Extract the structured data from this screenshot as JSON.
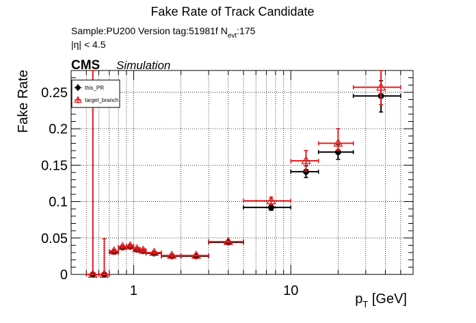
{
  "chart_data": {
    "type": "scatter",
    "title": "Fake Rate of Track Candidate",
    "info": {
      "sample_version": "Sample:PU200   Version tag:51981f  N",
      "nevt_sub": "evt",
      "nevt_value": ":175",
      "eta_cut": "|η| < 4.5"
    },
    "cms_label": "CMS",
    "cms_sublabel": "Simulation",
    "ylabel": "Fake Rate",
    "xlabel_main": "p",
    "xlabel_sub": "T",
    "xlabel_unit": " [GeV]",
    "x_scale": "log",
    "xlim": [
      0.4,
      60
    ],
    "ylim": [
      0,
      0.28
    ],
    "x_ticks": [
      {
        "value": 1,
        "label": "1"
      },
      {
        "value": 10,
        "label": "10"
      }
    ],
    "y_ticks": [
      {
        "value": 0,
        "label": "0"
      },
      {
        "value": 0.05,
        "label": "0.05"
      },
      {
        "value": 0.1,
        "label": "0.1"
      },
      {
        "value": 0.15,
        "label": "0.15"
      },
      {
        "value": 0.2,
        "label": "0.2"
      },
      {
        "value": 0.25,
        "label": "0.25"
      }
    ],
    "grid": true,
    "legend_position": "top-left",
    "series": [
      {
        "name": "this_PR",
        "color": "#000000",
        "marker": "circle",
        "points": [
          {
            "x": 0.55,
            "xlo": 0.5,
            "xhi": 0.6,
            "y": 0.0,
            "ylo": 0.0,
            "yhi": 0.0
          },
          {
            "x": 0.65,
            "xlo": 0.6,
            "xhi": 0.7,
            "y": 0.0,
            "ylo": 0.0,
            "yhi": 0.0
          },
          {
            "x": 0.75,
            "xlo": 0.7,
            "xhi": 0.8,
            "y": 0.031,
            "ylo": 0.029,
            "yhi": 0.033
          },
          {
            "x": 0.85,
            "xlo": 0.8,
            "xhi": 0.9,
            "y": 0.037,
            "ylo": 0.035,
            "yhi": 0.039
          },
          {
            "x": 0.95,
            "xlo": 0.9,
            "xhi": 1.0,
            "y": 0.038,
            "ylo": 0.036,
            "yhi": 0.04
          },
          {
            "x": 1.05,
            "xlo": 1.0,
            "xhi": 1.1,
            "y": 0.034,
            "ylo": 0.032,
            "yhi": 0.036
          },
          {
            "x": 1.15,
            "xlo": 1.1,
            "xhi": 1.2,
            "y": 0.032,
            "ylo": 0.03,
            "yhi": 0.034
          },
          {
            "x": 1.35,
            "xlo": 1.2,
            "xhi": 1.5,
            "y": 0.029,
            "ylo": 0.027,
            "yhi": 0.031
          },
          {
            "x": 1.75,
            "xlo": 1.5,
            "xhi": 2.0,
            "y": 0.025,
            "ylo": 0.023,
            "yhi": 0.027
          },
          {
            "x": 2.5,
            "xlo": 2.0,
            "xhi": 3.0,
            "y": 0.025,
            "ylo": 0.024,
            "yhi": 0.026
          },
          {
            "x": 4.0,
            "xlo": 3.0,
            "xhi": 5.0,
            "y": 0.044,
            "ylo": 0.043,
            "yhi": 0.045
          },
          {
            "x": 7.5,
            "xlo": 5.0,
            "xhi": 10.0,
            "y": 0.092,
            "ylo": 0.088,
            "yhi": 0.096
          },
          {
            "x": 12.5,
            "xlo": 10.0,
            "xhi": 15.0,
            "y": 0.141,
            "ylo": 0.133,
            "yhi": 0.149
          },
          {
            "x": 20.0,
            "xlo": 15.0,
            "xhi": 25.0,
            "y": 0.168,
            "ylo": 0.158,
            "yhi": 0.178
          },
          {
            "x": 37.5,
            "xlo": 25.0,
            "xhi": 50.0,
            "y": 0.245,
            "ylo": 0.223,
            "yhi": 0.266
          }
        ]
      },
      {
        "name": "target_branch",
        "color": "#e31a1c",
        "marker": "triangle",
        "points": [
          {
            "x": 0.55,
            "xlo": 0.5,
            "xhi": 0.6,
            "y": 0.0,
            "ylo": 0.0,
            "yhi": 0.28
          },
          {
            "x": 0.65,
            "xlo": 0.6,
            "xhi": 0.7,
            "y": 0.0,
            "ylo": 0.0,
            "yhi": 0.049
          },
          {
            "x": 0.75,
            "xlo": 0.7,
            "xhi": 0.8,
            "y": 0.032,
            "ylo": 0.03,
            "yhi": 0.034
          },
          {
            "x": 0.85,
            "xlo": 0.8,
            "xhi": 0.9,
            "y": 0.038,
            "ylo": 0.036,
            "yhi": 0.04
          },
          {
            "x": 0.95,
            "xlo": 0.9,
            "xhi": 1.0,
            "y": 0.039,
            "ylo": 0.037,
            "yhi": 0.041
          },
          {
            "x": 1.05,
            "xlo": 1.0,
            "xhi": 1.1,
            "y": 0.035,
            "ylo": 0.033,
            "yhi": 0.037
          },
          {
            "x": 1.15,
            "xlo": 1.1,
            "xhi": 1.2,
            "y": 0.033,
            "ylo": 0.031,
            "yhi": 0.035
          },
          {
            "x": 1.35,
            "xlo": 1.2,
            "xhi": 1.5,
            "y": 0.03,
            "ylo": 0.028,
            "yhi": 0.032
          },
          {
            "x": 1.75,
            "xlo": 1.5,
            "xhi": 2.0,
            "y": 0.026,
            "ylo": 0.024,
            "yhi": 0.028
          },
          {
            "x": 2.5,
            "xlo": 2.0,
            "xhi": 3.0,
            "y": 0.026,
            "ylo": 0.025,
            "yhi": 0.027
          },
          {
            "x": 4.0,
            "xlo": 3.0,
            "xhi": 5.0,
            "y": 0.045,
            "ylo": 0.044,
            "yhi": 0.046
          },
          {
            "x": 7.5,
            "xlo": 5.0,
            "xhi": 10.0,
            "y": 0.101,
            "ylo": 0.096,
            "yhi": 0.106
          },
          {
            "x": 12.5,
            "xlo": 10.0,
            "xhi": 15.0,
            "y": 0.156,
            "ylo": 0.142,
            "yhi": 0.17
          },
          {
            "x": 20.0,
            "xlo": 15.0,
            "xhi": 25.0,
            "y": 0.18,
            "ylo": 0.17,
            "yhi": 0.2
          },
          {
            "x": 37.5,
            "xlo": 25.0,
            "xhi": 50.0,
            "y": 0.257,
            "ylo": 0.233,
            "yhi": 0.28
          }
        ]
      }
    ]
  }
}
